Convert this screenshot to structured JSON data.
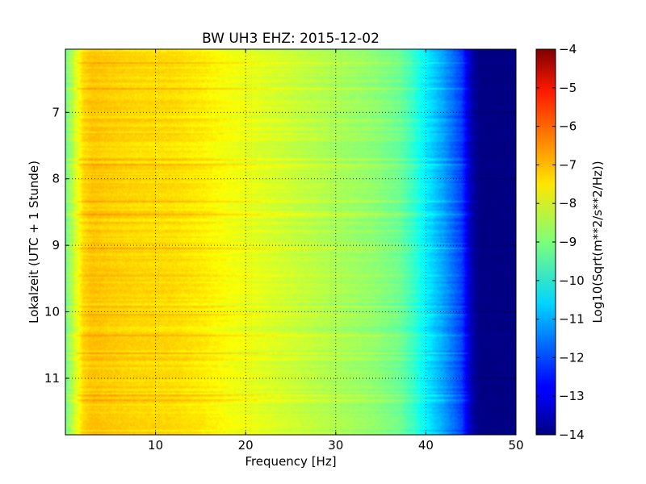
{
  "chart_data": {
    "type": "heatmap",
    "title": "BW UH3 EHZ: 2015-12-02",
    "xlabel": "Frequency [Hz]",
    "ylabel": "Lokalzeit (UTC + 1 Stunde)",
    "xlim": [
      0,
      50
    ],
    "ylim": [
      11.85,
      6.05
    ],
    "y_inverted": true,
    "x_ticks": [
      10,
      20,
      30,
      40,
      50
    ],
    "y_ticks": [
      7,
      8,
      9,
      10,
      11
    ],
    "grid": true,
    "grid_style": "dotted",
    "colorbar": {
      "label": "Log10(Sqrt(m**2/s**2/Hz))",
      "range": [
        -14,
        -4
      ],
      "ticks": [
        -4,
        -5,
        -6,
        -7,
        -8,
        -9,
        -10,
        -11,
        -12,
        -13,
        -14
      ],
      "colormap": "jet"
    },
    "spectrum_profile": {
      "frequency_hz": [
        0,
        1,
        2,
        3,
        5,
        8,
        12,
        15,
        18,
        22,
        26,
        30,
        34,
        37,
        38.5,
        40,
        42,
        44,
        45,
        46,
        50
      ],
      "log10_amplitude": [
        -9.2,
        -8.3,
        -7.4,
        -7.2,
        -7.3,
        -7.4,
        -7.45,
        -7.6,
        -7.85,
        -8.1,
        -8.35,
        -8.6,
        -8.85,
        -9.2,
        -9.7,
        -10.4,
        -11.2,
        -12.2,
        -13.5,
        -14.0,
        -14.0
      ]
    }
  },
  "ticks_text": {
    "x": [
      "10",
      "20",
      "30",
      "40",
      "50"
    ],
    "y": [
      "7",
      "8",
      "9",
      "10",
      "11"
    ],
    "cb": [
      "−4",
      "−5",
      "−6",
      "−7",
      "−8",
      "−9",
      "−10",
      "−11",
      "−12",
      "−13",
      "−14"
    ]
  },
  "colors": {
    "frame": "#000000",
    "background": "#ffffff"
  }
}
